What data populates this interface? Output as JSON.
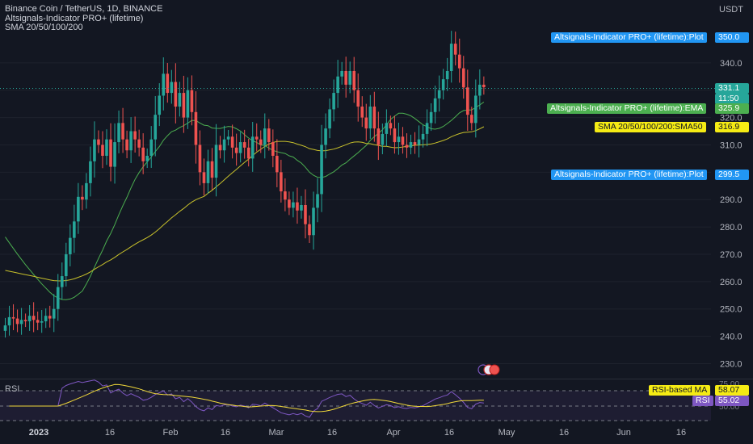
{
  "header": {
    "symbol_line": "Binance Coin / TetherUS, 1D, BINANCE",
    "indicator1": "Altsignals-Indicator PRO+ (lifetime)",
    "indicator2": "SMA 20/50/100/200",
    "currency": "USDT"
  },
  "colors": {
    "background": "#131722",
    "up": "#26a69a",
    "down": "#ef5350",
    "sma20": "#4caf50",
    "sma50": "#c8c12b",
    "rsi": "#7e57c2",
    "rsi_ma": "#f0d83a",
    "plot_tag": "#2196f3",
    "ema_tag": "#4caf50"
  },
  "tags": {
    "plot_upper": {
      "label": "Altsignals-Indicator PRO+ (lifetime):Plot",
      "value": "350.0"
    },
    "ema": {
      "label": "Altsignals-Indicator PRO+ (lifetime):EMA",
      "value": "325.9"
    },
    "sma50": {
      "label": "SMA 20/50/100/200:SMA50",
      "value": "316.9"
    },
    "plot_lower": {
      "label": "Altsignals-Indicator PRO+ (lifetime):Plot",
      "value": "299.5"
    },
    "last_price": "331.1",
    "countdown": "11:50",
    "rsi_ma": {
      "label": "RSI-based MA",
      "value": "58.07"
    },
    "rsi": {
      "label": "RSI",
      "value": "55.02"
    }
  },
  "rsi_pane": {
    "label": "RSI",
    "levels": [
      "75.00",
      "50.00"
    ]
  },
  "chart_data": {
    "type": "candlestick",
    "title": "Binance Coin / TetherUS, 1D, BINANCE",
    "y_unit": "USDT",
    "ylim": [
      226,
      356
    ],
    "y_ticks": [
      230,
      240,
      250,
      260,
      270,
      280,
      290,
      300,
      310,
      320,
      330,
      340
    ],
    "x_ticks": [
      "2023",
      "16",
      "Feb",
      "16",
      "Mar",
      "16",
      "Apr",
      "16",
      "May",
      "16",
      "Jun",
      "16"
    ],
    "closes": [
      244.0,
      247.0,
      246.5,
      244.5,
      246.0,
      245.5,
      247.5,
      246.0,
      245.0,
      245.5,
      247.5,
      246.5,
      250.0,
      258.0,
      262.0,
      270.0,
      276.0,
      282.0,
      291.0,
      290.0,
      296.0,
      304.0,
      312.0,
      310.0,
      306.0,
      312.0,
      302.0,
      311.0,
      318.0,
      312.0,
      308.0,
      315.0,
      312.0,
      309.0,
      304.0,
      306.0,
      312.0,
      321.0,
      328.0,
      336.0,
      329.0,
      333.0,
      324.0,
      329.0,
      320.0,
      330.0,
      322.0,
      310.0,
      300.0,
      296.0,
      304.0,
      298.0,
      310.0,
      308.0,
      312.0,
      313.0,
      309.0,
      307.0,
      311.0,
      309.0,
      305.0,
      313.0,
      312.0,
      310.0,
      316.0,
      311.0,
      306.0,
      300.0,
      293.0,
      290.0,
      287.0,
      289.0,
      286.0,
      288.0,
      281.0,
      277.0,
      287.0,
      292.0,
      310.0,
      316.0,
      323.0,
      329.0,
      335.0,
      337.0,
      332.0,
      337.0,
      330.0,
      324.0,
      320.0,
      316.0,
      324.0,
      316.0,
      310.0,
      314.0,
      318.0,
      316.0,
      311.0,
      313.0,
      310.0,
      309.0,
      311.0,
      310.0,
      312.0,
      314.0,
      318.0,
      322.0,
      327.0,
      330.0,
      334.0,
      337.0,
      347.0,
      343.0,
      338.0,
      331.0,
      321.0,
      318.0,
      328.0,
      332.0,
      331.1
    ],
    "sma20_start": [
      290,
      266
    ],
    "sma50_start": [
      261,
      268
    ],
    "rsi_latest": 55.02,
    "rsi_ma_latest": 58.07
  }
}
